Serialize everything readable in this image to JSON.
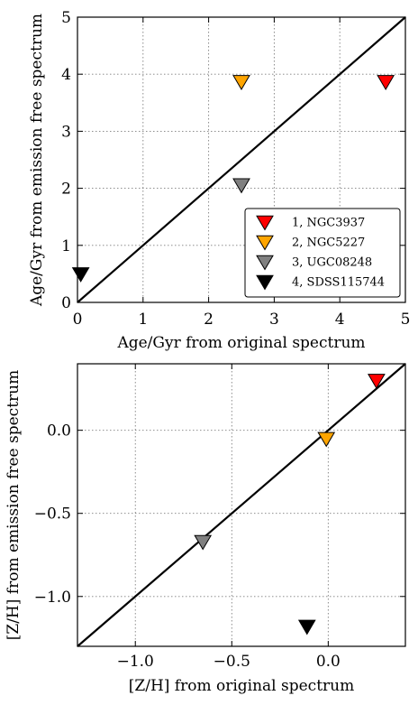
{
  "chart_data": [
    {
      "type": "scatter",
      "title": "",
      "xlabel": "Age/Gyr from original spectrum",
      "ylabel": "Age/Gyr from emission free spectrum",
      "xlim": [
        0,
        5
      ],
      "ylim": [
        0,
        5
      ],
      "xticks": [
        0,
        1,
        2,
        3,
        4,
        5
      ],
      "yticks": [
        0,
        1,
        2,
        3,
        4,
        5
      ],
      "xtick_labels": [
        "0",
        "1",
        "2",
        "3",
        "4",
        "5"
      ],
      "ytick_labels": [
        "0",
        "1",
        "2",
        "3",
        "4",
        "5"
      ],
      "grid": true,
      "legend_position": "bottom-right",
      "reference_line": "one-to-one",
      "series": [
        {
          "name": "1, NGC3937",
          "color": "#ff0000",
          "marker": "triangle-down",
          "x": [
            4.7
          ],
          "y": [
            3.87
          ]
        },
        {
          "name": "2, NGC5227",
          "color": "#ffa500",
          "marker": "triangle-down",
          "x": [
            2.5
          ],
          "y": [
            3.87
          ]
        },
        {
          "name": "3, UGC08248",
          "color": "#808080",
          "marker": "triangle-down",
          "x": [
            2.5
          ],
          "y": [
            2.06
          ]
        },
        {
          "name": "4, SDSS115744",
          "color": "#000000",
          "marker": "triangle-down",
          "x": [
            0.05
          ],
          "y": [
            0.5
          ]
        }
      ]
    },
    {
      "type": "scatter",
      "title": "",
      "xlabel": "[Z/H] from original spectrum",
      "ylabel": "[Z/H] from emission free spectrum",
      "xlim": [
        -1.3,
        0.4
      ],
      "ylim": [
        -1.3,
        0.4
      ],
      "xticks": [
        -1.0,
        -0.5,
        0.0
      ],
      "yticks": [
        -1.0,
        -0.5,
        0.0
      ],
      "xtick_labels": [
        "−1.0",
        "−0.5",
        "0.0"
      ],
      "ytick_labels": [
        "−1.0",
        "−0.5",
        "0.0"
      ],
      "grid": true,
      "reference_line": "one-to-one",
      "series": [
        {
          "name": "1, NGC3937",
          "color": "#ff0000",
          "marker": "triangle-down",
          "x": [
            0.25
          ],
          "y": [
            0.3
          ]
        },
        {
          "name": "2, NGC5227",
          "color": "#ffa500",
          "marker": "triangle-down",
          "x": [
            -0.01
          ],
          "y": [
            -0.05
          ]
        },
        {
          "name": "3, UGC08248",
          "color": "#808080",
          "marker": "triangle-down",
          "x": [
            -0.65
          ],
          "y": [
            -0.67
          ]
        },
        {
          "name": "4, SDSS115744",
          "color": "#000000",
          "marker": "triangle-down",
          "x": [
            -0.11
          ],
          "y": [
            -1.18
          ]
        }
      ]
    }
  ]
}
